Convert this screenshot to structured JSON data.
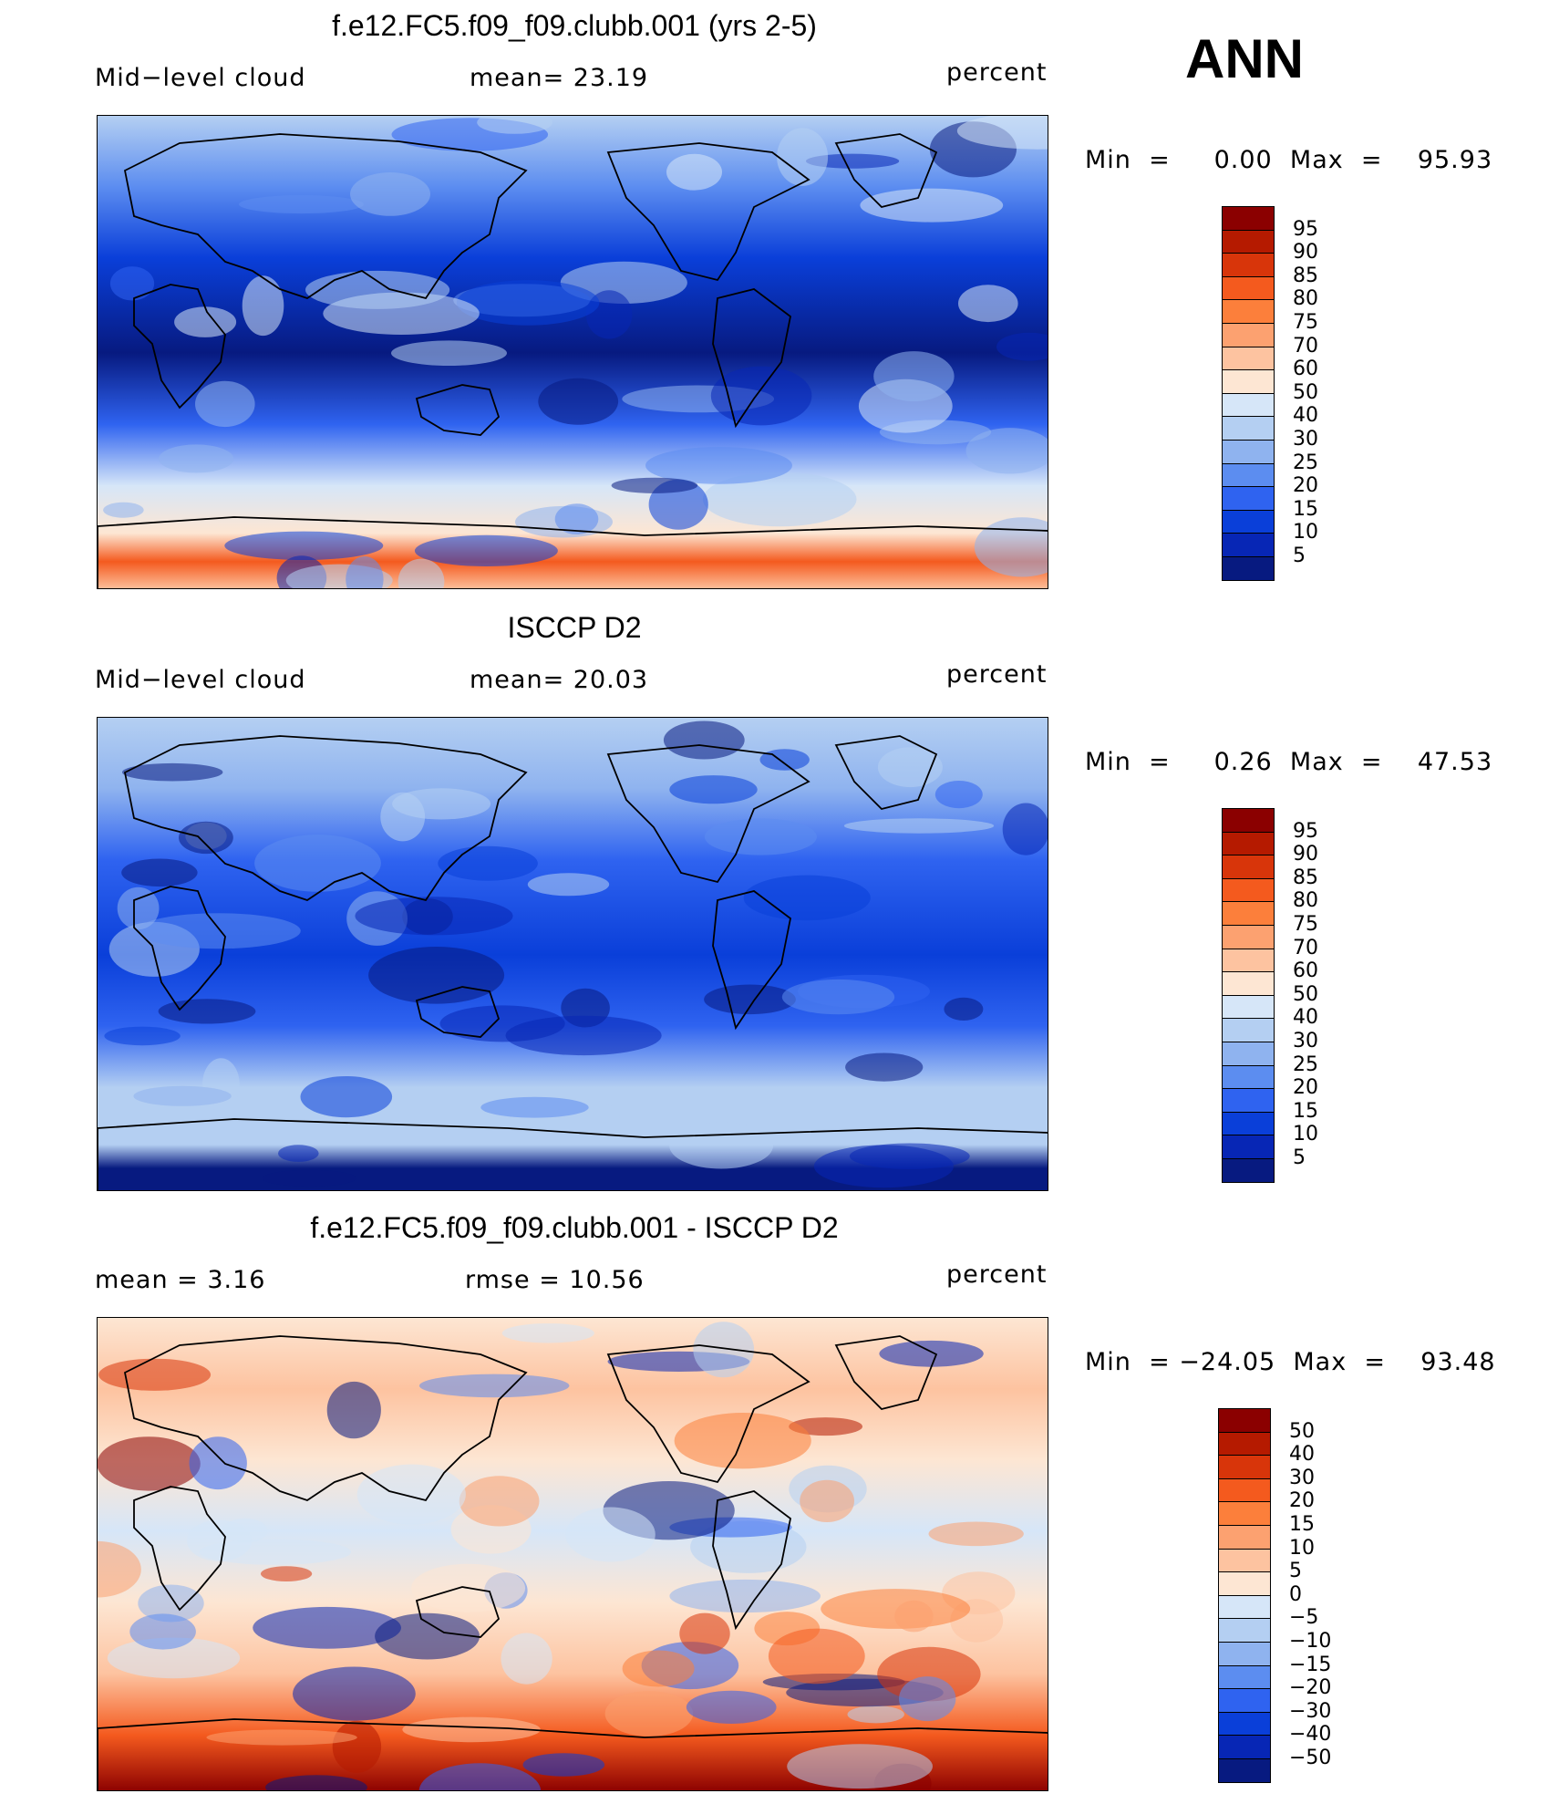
{
  "season": "ANN",
  "panels": [
    {
      "title": "f.e12.FC5.f09_f09.clubb.001 (yrs 2-5)",
      "left_label": "Mid−level cloud",
      "center_label": "mean=   23.19",
      "right_label": "percent",
      "stats": "Min  =     0.00  Max  =    95.93",
      "colorbar": {
        "labels": [
          "95",
          "90",
          "85",
          "80",
          "75",
          "70",
          "60",
          "50",
          "40",
          "30",
          "25",
          "20",
          "15",
          "10",
          "5"
        ],
        "colors": [
          "#8b0000",
          "#b51a00",
          "#d8350a",
          "#f45a1e",
          "#fc7f3b",
          "#fca170",
          "#fdc3a0",
          "#fde6d3",
          "#d6e6f8",
          "#b4cff2",
          "#8fb3ef",
          "#5c8df0",
          "#2f63f0",
          "#0a3fd9",
          "#0726b5",
          "#071a80"
        ]
      },
      "chart_data": {
        "type": "heatmap",
        "title": "f.e12.FC5.f09_f09.clubb.001 (yrs 2-5)",
        "variable": "Mid-level cloud",
        "units": "percent",
        "mean": 23.19,
        "min": 0.0,
        "max": 95.93,
        "contour_levels": [
          5,
          10,
          15,
          20,
          25,
          30,
          40,
          50,
          60,
          70,
          75,
          80,
          85,
          90,
          95
        ]
      }
    },
    {
      "title": "ISCCP D2",
      "left_label": "Mid−level cloud",
      "center_label": "mean=   20.03",
      "right_label": "percent",
      "stats": "Min  =     0.26  Max  =    47.53",
      "colorbar": {
        "labels": [
          "95",
          "90",
          "85",
          "80",
          "75",
          "70",
          "60",
          "50",
          "40",
          "30",
          "25",
          "20",
          "15",
          "10",
          "5"
        ],
        "colors": [
          "#8b0000",
          "#b51a00",
          "#d8350a",
          "#f45a1e",
          "#fc7f3b",
          "#fca170",
          "#fdc3a0",
          "#fde6d3",
          "#d6e6f8",
          "#b4cff2",
          "#8fb3ef",
          "#5c8df0",
          "#2f63f0",
          "#0a3fd9",
          "#0726b5",
          "#071a80"
        ]
      },
      "chart_data": {
        "type": "heatmap",
        "title": "ISCCP D2",
        "variable": "Mid-level cloud",
        "units": "percent",
        "mean": 20.03,
        "min": 0.26,
        "max": 47.53,
        "contour_levels": [
          5,
          10,
          15,
          20,
          25,
          30,
          40,
          50,
          60,
          70,
          75,
          80,
          85,
          90,
          95
        ]
      }
    },
    {
      "title": "f.e12.FC5.f09_f09.clubb.001 - ISCCP D2",
      "left_label": "mean  =     3.16",
      "center_label": "rmse  =    10.56",
      "right_label": "percent",
      "stats": "Min  = −24.05  Max  =    93.48",
      "colorbar": {
        "labels": [
          "50",
          "40",
          "30",
          "20",
          "15",
          "10",
          "5",
          "0",
          "−5",
          "−10",
          "−15",
          "−20",
          "−30",
          "−40",
          "−50"
        ],
        "colors": [
          "#8b0000",
          "#b51a00",
          "#d8350a",
          "#f45a1e",
          "#fc7f3b",
          "#fca170",
          "#fdc3a0",
          "#fde6d3",
          "#d6e6f8",
          "#b4cff2",
          "#8fb3ef",
          "#5c8df0",
          "#2f63f0",
          "#0a3fd9",
          "#0726b5",
          "#071a80"
        ]
      },
      "chart_data": {
        "type": "heatmap",
        "title": "f.e12.FC5.f09_f09.clubb.001 - ISCCP D2",
        "units": "percent",
        "mean": 3.16,
        "rmse": 10.56,
        "min": -24.05,
        "max": 93.48,
        "contour_levels": [
          -50,
          -40,
          -30,
          -20,
          -15,
          -10,
          -5,
          0,
          5,
          10,
          15,
          20,
          30,
          40,
          50
        ]
      }
    }
  ]
}
